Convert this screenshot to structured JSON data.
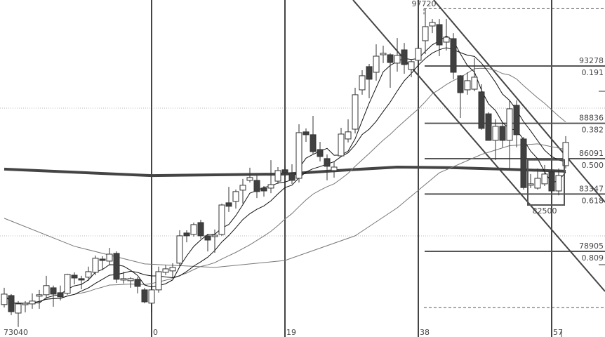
{
  "chart_data": {
    "type": "candlestick",
    "colors": {
      "up_body": "#ffffff",
      "down_body": "#404040",
      "outline": "#333333",
      "ma_short": "#111111",
      "ma_mid": "#777777",
      "ma_long_thick": "#444444",
      "grid": "#bbbbbb"
    },
    "x_tick_labels": [
      {
        "bar": -21,
        "text": "73040"
      },
      {
        "bar": 0,
        "text": "0"
      },
      {
        "bar": 19,
        "text": "19"
      },
      {
        "bar": 38,
        "text": "38"
      },
      {
        "bar": 57,
        "text": "57"
      }
    ],
    "vertical_markers": [
      0,
      19,
      38,
      57
    ],
    "high_label": {
      "bar": 39,
      "value": 97720,
      "text": "97720"
    },
    "box_annotation": {
      "from_bar": 54,
      "to_bar": 59,
      "high": 86000,
      "low": 82500,
      "text": "82500"
    },
    "fib_levels": [
      {
        "price": 93278,
        "price_text": "93278",
        "ratio_text": "0.191"
      },
      {
        "price": 88836,
        "price_text": "88836",
        "ratio_text": "0.382"
      },
      {
        "price": 86091,
        "price_text": "86091",
        "ratio_text": "0.500"
      },
      {
        "price": 83347,
        "price_text": "83347",
        "ratio_text": "0.618"
      },
      {
        "price": 78905,
        "price_text": "78905",
        "ratio_text": "0.809"
      }
    ],
    "dashed_levels": [
      97720,
      74560
    ],
    "ylim": [
      72400,
      98400
    ],
    "first_bar": -21,
    "candles_ohlc": [
      [
        74780,
        76080,
        74560,
        75590
      ],
      [
        75480,
        75590,
        73960,
        74230
      ],
      [
        74120,
        75050,
        73040,
        74830
      ],
      [
        74830,
        75050,
        74180,
        74880
      ],
      [
        74830,
        75650,
        74450,
        75050
      ],
      [
        75430,
        75920,
        74450,
        75540
      ],
      [
        75540,
        77010,
        75260,
        76250
      ],
      [
        76080,
        76250,
        74610,
        75590
      ],
      [
        75700,
        76250,
        75100,
        75380
      ],
      [
        75650,
        77170,
        75540,
        77120
      ],
      [
        77060,
        77280,
        76350,
        76840
      ],
      [
        76790,
        77010,
        75970,
        76780
      ],
      [
        76900,
        77720,
        76630,
        77330
      ],
      [
        77280,
        78580,
        77060,
        78370
      ],
      [
        78310,
        78530,
        77440,
        78200
      ],
      [
        78150,
        79180,
        77820,
        78690
      ],
      [
        78750,
        78910,
        76460,
        76740
      ],
      [
        76740,
        77330,
        76410,
        76790
      ],
      [
        76630,
        76900,
        76080,
        76790
      ],
      [
        76740,
        76900,
        75650,
        76190
      ],
      [
        75920,
        76080,
        74880,
        74990
      ],
      [
        74890,
        76080,
        74180,
        75920
      ],
      [
        75920,
        77720,
        75700,
        77330
      ],
      [
        77280,
        77830,
        77060,
        77550
      ],
      [
        77390,
        77990,
        76900,
        77660
      ],
      [
        77990,
        80540,
        77720,
        80110
      ],
      [
        80330,
        80540,
        79610,
        80110
      ],
      [
        80220,
        81140,
        80050,
        80980
      ],
      [
        81140,
        81350,
        79890,
        80110
      ],
      [
        80110,
        80270,
        78900,
        79780
      ],
      [
        80160,
        80600,
        78800,
        80160
      ],
      [
        80220,
        82610,
        80110,
        82500
      ],
      [
        82670,
        83910,
        81960,
        82400
      ],
      [
        82780,
        83700,
        82230,
        83540
      ],
      [
        83650,
        84520,
        82610,
        84030
      ],
      [
        84410,
        85390,
        84250,
        84630
      ],
      [
        84410,
        84790,
        83040,
        83540
      ],
      [
        83810,
        83970,
        83150,
        83590
      ],
      [
        83810,
        85980,
        83420,
        84080
      ],
      [
        84350,
        85440,
        84140,
        85170
      ],
      [
        85230,
        85550,
        84680,
        85010
      ],
      [
        84950,
        85660,
        84140,
        84410
      ],
      [
        84570,
        88760,
        84250,
        88110
      ],
      [
        88170,
        88440,
        87400,
        87950
      ],
      [
        87950,
        89410,
        86420,
        86640
      ],
      [
        86800,
        87400,
        85880,
        86260
      ],
      [
        86100,
        86420,
        84410,
        85500
      ],
      [
        85170,
        85880,
        84620,
        85440
      ],
      [
        86310,
        88490,
        86260,
        88000
      ],
      [
        87620,
        89140,
        87350,
        88170
      ],
      [
        88380,
        91590,
        88050,
        91050
      ],
      [
        91430,
        92950,
        91050,
        92520
      ],
      [
        93230,
        93440,
        90780,
        92250
      ],
      [
        92790,
        94960,
        92140,
        94040
      ],
      [
        94150,
        94860,
        93500,
        94260
      ],
      [
        94150,
        94260,
        91590,
        93550
      ],
      [
        93500,
        95450,
        92840,
        94100
      ],
      [
        94530,
        95070,
        92680,
        93390
      ],
      [
        93010,
        93770,
        92410,
        93610
      ],
      [
        93720,
        94910,
        93390,
        94640
      ],
      [
        95240,
        97720,
        94200,
        96330
      ],
      [
        96380,
        96920,
        95830,
        96650
      ],
      [
        96490,
        96920,
        94040,
        94910
      ],
      [
        95130,
        96920,
        94480,
        95510
      ],
      [
        95400,
        95830,
        92250,
        92790
      ],
      [
        92520,
        92570,
        89250,
        91210
      ],
      [
        91430,
        92790,
        91050,
        92140
      ],
      [
        91480,
        93880,
        91320,
        92410
      ],
      [
        91270,
        91860,
        88330,
        88440
      ],
      [
        89570,
        89690,
        87510,
        87510
      ],
      [
        87510,
        89140,
        85980,
        88600
      ],
      [
        88600,
        88870,
        86970,
        87510
      ],
      [
        87510,
        90610,
        85260,
        89960
      ],
      [
        90230,
        90610,
        86970,
        87950
      ],
      [
        87620,
        87780,
        83700,
        83850
      ],
      [
        84140,
        84900,
        83810,
        84140
      ],
      [
        83810,
        85330,
        83700,
        84570
      ],
      [
        84140,
        85610,
        83970,
        84900
      ],
      [
        85060,
        85330,
        83430,
        83590
      ],
      [
        83590,
        85330,
        83250,
        84790
      ],
      [
        85550,
        87840,
        85330,
        87350
      ]
    ],
    "ma_thick_points": [
      [
        -21,
        85280
      ],
      [
        0,
        84780
      ],
      [
        19,
        84900
      ],
      [
        28,
        85220
      ],
      [
        35,
        85440
      ],
      [
        43,
        85390
      ],
      [
        50,
        85280
      ],
      [
        59,
        85120
      ]
    ],
    "ma_slow_points": [
      [
        -21,
        81470
      ],
      [
        -11,
        79300
      ],
      [
        -1,
        77930
      ],
      [
        9,
        77660
      ],
      [
        19,
        78200
      ],
      [
        29,
        80110
      ],
      [
        35,
        82280
      ],
      [
        41,
        85000
      ],
      [
        47,
        86420
      ],
      [
        51,
        87100
      ],
      [
        55,
        87240
      ],
      [
        59,
        86800
      ]
    ]
  }
}
